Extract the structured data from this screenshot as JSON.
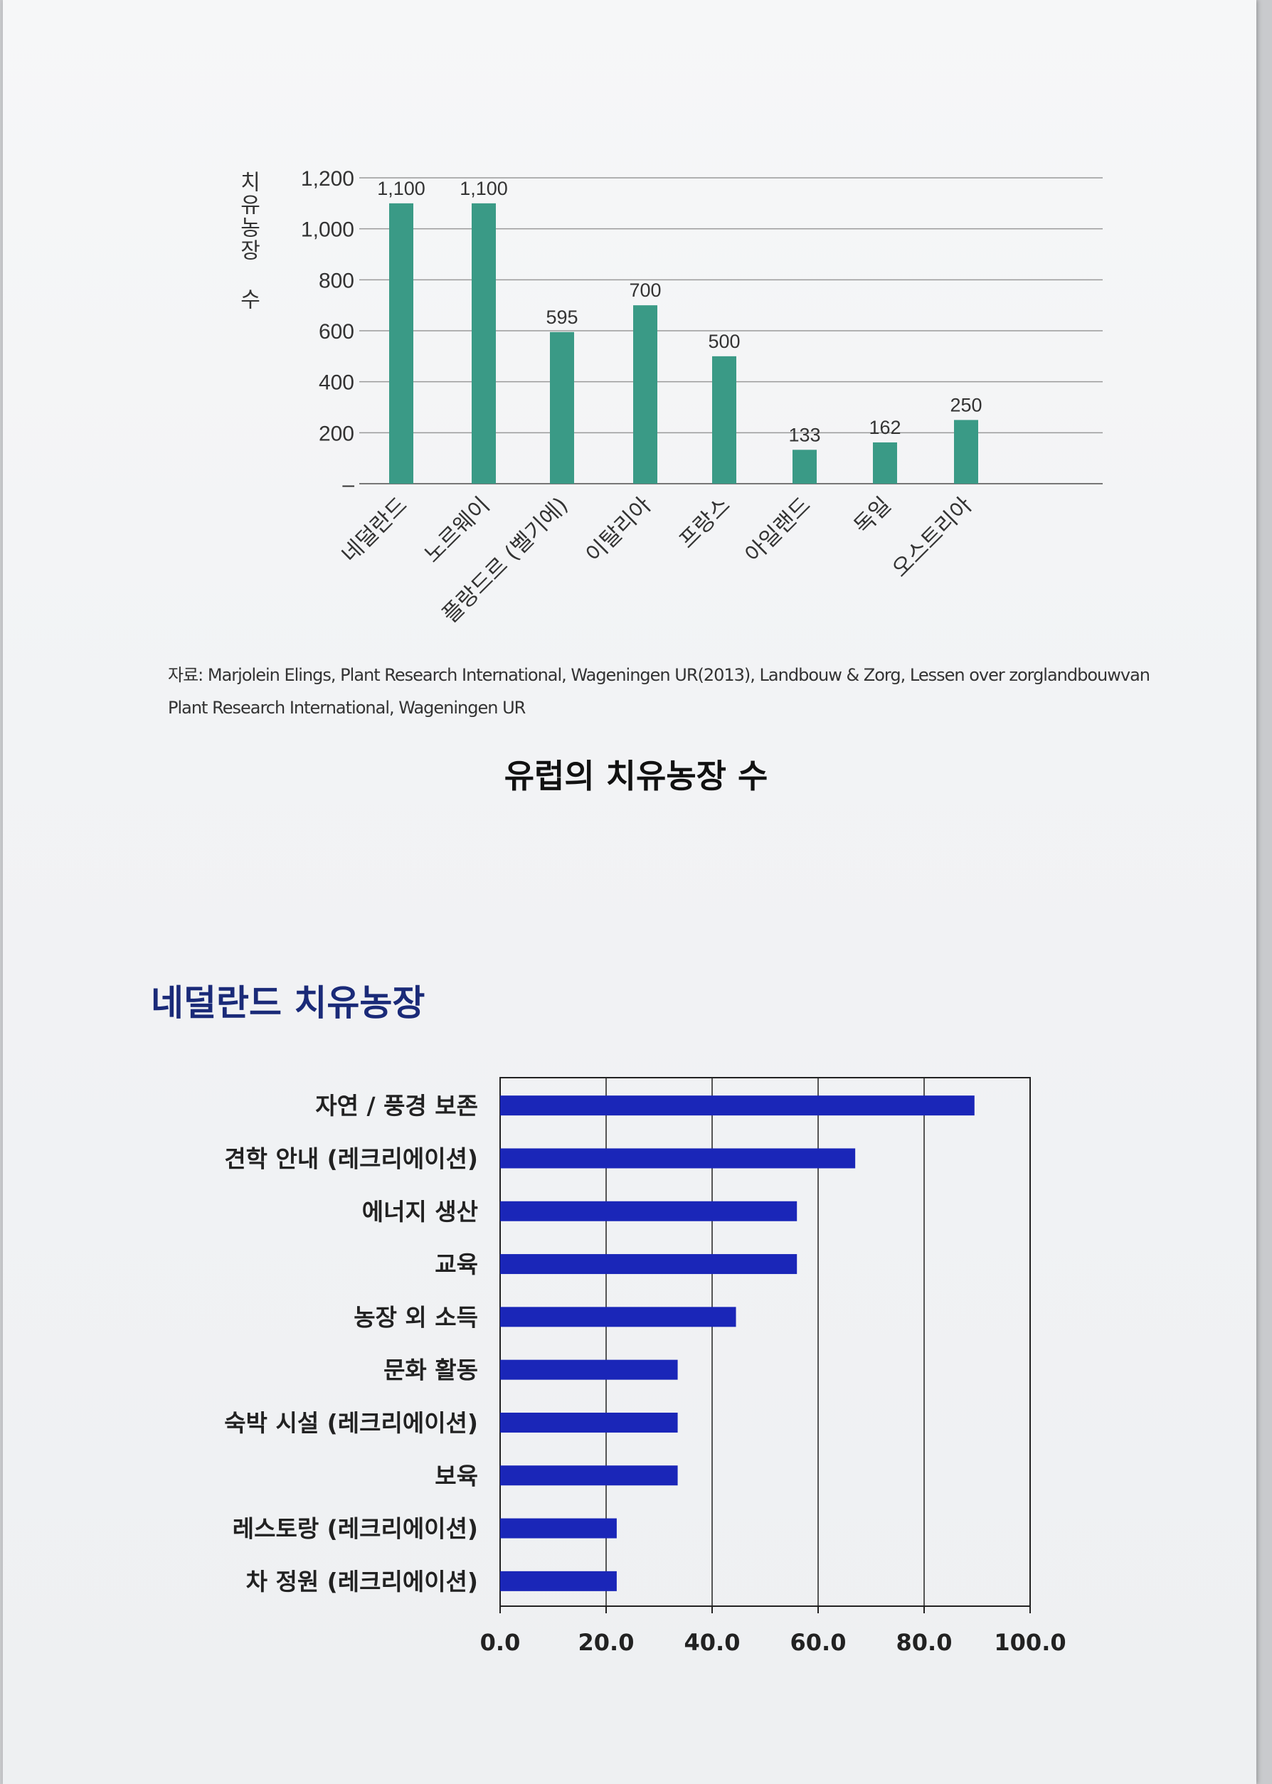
{
  "source_label": "자료:",
  "source_text": "Marjolein Elings, Plant Research International, Wageningen UR(2013), Landbouw & Zorg, Lessen over zorglandbouwvan Plant Research International, Wageningen UR",
  "chart1_caption": "유럽의 치유농장 수",
  "chart2_heading": "네덜란드 치유농장",
  "colors": {
    "bar1": "#3a9a86",
    "bar2": "#1a26b8"
  },
  "chart_data": [
    {
      "type": "bar",
      "title": "유럽의 치유농장 수",
      "ylabel": "치유농장 수",
      "xlabel": "",
      "categories": [
        "네덜란드",
        "노르웨이",
        "플랑드르 (벨기에)",
        "이탈리아",
        "프랑스",
        "아일랜드",
        "독일",
        "오스트리아"
      ],
      "values": [
        1100,
        1100,
        595,
        700,
        500,
        133,
        162,
        250
      ],
      "value_labels": [
        "1,100",
        "1,100",
        "595",
        "700",
        "500",
        "133",
        "162",
        "250"
      ],
      "ylim": [
        0,
        1200
      ],
      "yticks": [
        "–",
        "200",
        "400",
        "600",
        "800",
        "1,000",
        "1,200"
      ],
      "grid": true,
      "legend": "none"
    },
    {
      "type": "bar",
      "orientation": "horizontal",
      "title": "",
      "xlabel": "",
      "ylabel": "",
      "categories": [
        "자연 / 풍경 보존",
        "견학 안내 (레크리에이션)",
        "에너지 생산",
        "교육",
        "농장 외 소득",
        "문화 활동",
        "숙박 시설 (레크리에이션)",
        "보육",
        "레스토랑 (레크리에이션)",
        "차 정원 (레크리에이션)"
      ],
      "values": [
        89.5,
        67,
        56,
        56,
        44.5,
        33.5,
        33.5,
        33.5,
        22,
        22
      ],
      "xlim": [
        0,
        100
      ],
      "xticks": [
        "0.0",
        "20.0",
        "40.0",
        "60.0",
        "80.0",
        "100.0"
      ],
      "grid": true,
      "legend": "none"
    }
  ]
}
